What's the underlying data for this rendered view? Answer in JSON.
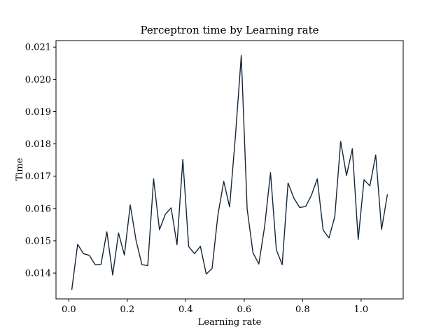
{
  "chart_data": {
    "type": "line",
    "title": "Perceptron time by Learning rate",
    "xlabel": "Learning rate",
    "ylabel": "Time",
    "xlim": [
      -0.044,
      1.144
    ],
    "ylim": [
      0.0132,
      0.0212
    ],
    "x_ticks": [
      0.0,
      0.2,
      0.4,
      0.6,
      0.8,
      1.0
    ],
    "x_tick_labels": [
      "0.0",
      "0.2",
      "0.4",
      "0.6",
      "0.8",
      "1.0"
    ],
    "y_ticks": [
      0.014,
      0.015,
      0.016,
      0.017,
      0.018,
      0.019,
      0.02,
      0.021
    ],
    "y_tick_labels": [
      "0.014",
      "0.015",
      "0.016",
      "0.017",
      "0.018",
      "0.019",
      "0.020",
      "0.021"
    ],
    "grid": false,
    "line_color": "#13263a",
    "series": [
      {
        "x": [
          0.01,
          0.03,
          0.05,
          0.07,
          0.09,
          0.11,
          0.13,
          0.15,
          0.17,
          0.19,
          0.21,
          0.23,
          0.25,
          0.27,
          0.29,
          0.31,
          0.33,
          0.35,
          0.37,
          0.39,
          0.41,
          0.43,
          0.45,
          0.47,
          0.49,
          0.51,
          0.53,
          0.55,
          0.57,
          0.59,
          0.61,
          0.63,
          0.65,
          0.67,
          0.69,
          0.71,
          0.73,
          0.75,
          0.77,
          0.79,
          0.81,
          0.83,
          0.85,
          0.87,
          0.89,
          0.91,
          0.93,
          0.95,
          0.97,
          0.99,
          1.01,
          1.03,
          1.05,
          1.07,
          1.09
        ],
        "values": [
          0.01348,
          0.01489,
          0.0146,
          0.01455,
          0.01426,
          0.01427,
          0.01528,
          0.01394,
          0.01524,
          0.01456,
          0.01611,
          0.01501,
          0.01426,
          0.01423,
          0.01692,
          0.01534,
          0.01582,
          0.01602,
          0.01488,
          0.01752,
          0.01482,
          0.0146,
          0.01483,
          0.01397,
          0.01414,
          0.0158,
          0.01684,
          0.01605,
          0.01825,
          0.02074,
          0.01599,
          0.01463,
          0.01428,
          0.01545,
          0.01711,
          0.01472,
          0.01426,
          0.01679,
          0.01632,
          0.01603,
          0.01606,
          0.01641,
          0.01692,
          0.01533,
          0.01509,
          0.01575,
          0.01808,
          0.01702,
          0.01785,
          0.01504,
          0.01689,
          0.0167,
          0.01766,
          0.01535,
          0.01644
        ]
      }
    ]
  }
}
